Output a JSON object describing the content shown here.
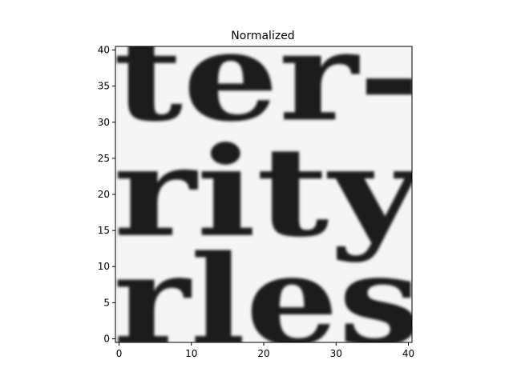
{
  "chart_data": {
    "type": "heatmap",
    "title": "Normalized",
    "xlabel": "",
    "ylabel": "",
    "xlim": [
      -0.5,
      40.5
    ],
    "ylim": [
      40.5,
      -0.5
    ],
    "x_ticks": [
      0,
      10,
      20,
      30,
      40
    ],
    "y_ticks": [
      0,
      5,
      10,
      15,
      20,
      25,
      30,
      35,
      40
    ],
    "colormap": "gray",
    "image_content": "grayscale crop of printed text lines",
    "text_rows": [
      {
        "fragment": "rles",
        "y_center": 5.5
      },
      {
        "fragment": "rity",
        "y_center": 20.5
      },
      {
        "fragment": "ter-",
        "y_center": 36.5
      }
    ],
    "highlight_box": {
      "x0": 15,
      "y0": 15,
      "x1": 24,
      "y1": 24,
      "color": "#ff0000"
    },
    "grid": false
  }
}
